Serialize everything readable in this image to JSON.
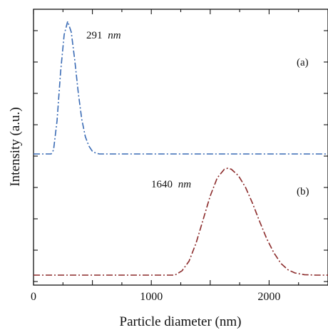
{
  "chart_data": {
    "type": "line",
    "title": "",
    "xlabel": "Particle diameter (nm)",
    "ylabel": "Intensity (a.u.)",
    "xlim": [
      0,
      2500
    ],
    "x_ticks": [
      0,
      1000,
      2000
    ],
    "y_ticks_labeled": false,
    "grid": false,
    "legend": "none",
    "series": [
      {
        "panel": "(a)",
        "color": "#3a6bb5",
        "style": "dash-dot",
        "peak_label_value": "291",
        "peak_label_unit": "nm",
        "x": [
          0,
          150,
          170,
          200,
          230,
          260,
          290,
          320,
          350,
          380,
          410,
          440,
          470,
          500,
          530,
          560,
          600,
          800,
          1000,
          1500,
          2000,
          2500
        ],
        "y": [
          0,
          0,
          0.03,
          0.25,
          0.62,
          0.9,
          1.0,
          0.92,
          0.71,
          0.46,
          0.26,
          0.13,
          0.06,
          0.02,
          0.006,
          0.0,
          0,
          0,
          0,
          0,
          0,
          0
        ]
      },
      {
        "panel": "(b)",
        "color": "#8b2a2a",
        "style": "dash-dot",
        "peak_label_value": "1640",
        "peak_label_unit": "nm",
        "x": [
          0,
          500,
          1000,
          1200,
          1260,
          1320,
          1380,
          1440,
          1500,
          1560,
          1620,
          1650,
          1680,
          1740,
          1800,
          1860,
          1920,
          1980,
          2040,
          2100,
          2160,
          2220,
          2300,
          2400,
          2500
        ],
        "y": [
          0,
          0,
          0,
          0,
          0.04,
          0.13,
          0.3,
          0.52,
          0.74,
          0.91,
          0.99,
          1.0,
          0.99,
          0.93,
          0.82,
          0.67,
          0.5,
          0.34,
          0.21,
          0.11,
          0.05,
          0.02,
          0.004,
          0,
          0
        ]
      }
    ]
  }
}
